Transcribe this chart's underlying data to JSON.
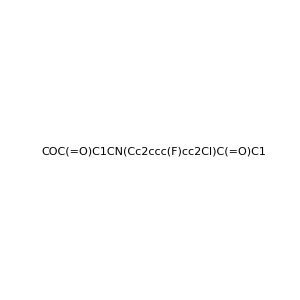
{
  "smiles": "COC(=O)C1CN(Cc2ccc(F)cc2Cl)C(=O)C1",
  "title": "",
  "background_color": "#f0f0f0",
  "bond_color": "#000000",
  "atom_colors": {
    "O": "#ff0000",
    "N": "#0000ff",
    "Cl": "#00cc00",
    "F": "#ff00ff"
  },
  "figsize": [
    3.0,
    3.0
  ],
  "dpi": 100
}
